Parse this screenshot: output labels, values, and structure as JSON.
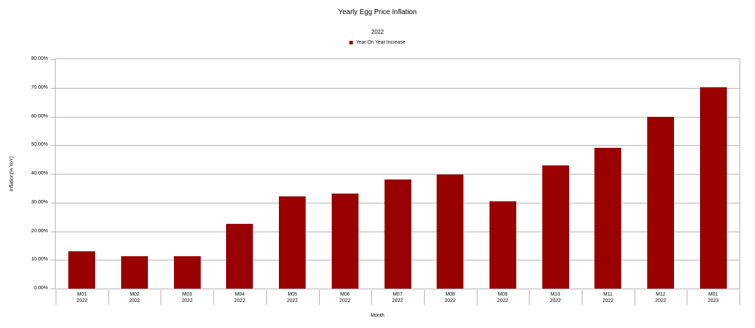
{
  "chart_data": {
    "type": "bar",
    "title": "Yearly Egg Price Inflation",
    "subtitle": "2022",
    "xlabel": "Month",
    "ylabel": "Inflation(% YoY)",
    "ylim": [
      0,
      80
    ],
    "ytick_step": 10,
    "ytick_labels": [
      "0.00%",
      "10.00%",
      "20.00%",
      "30.00%",
      "40.00%",
      "50.00%",
      "60.00%",
      "70.00%",
      "80.00%"
    ],
    "grid": "horizontal gridlines on, no vertical gridlines",
    "legend_position": "top-center",
    "categories": [
      {
        "line1": "M01",
        "line2": "2022"
      },
      {
        "line1": "M02",
        "line2": "2022"
      },
      {
        "line1": "M03",
        "line2": "2022"
      },
      {
        "line1": "M04",
        "line2": "2022"
      },
      {
        "line1": "M05",
        "line2": "2022"
      },
      {
        "line1": "M06",
        "line2": "2022"
      },
      {
        "line1": "M07",
        "line2": "2022"
      },
      {
        "line1": "M08",
        "line2": "2022"
      },
      {
        "line1": "M09",
        "line2": "2022"
      },
      {
        "line1": "M10",
        "line2": "2022"
      },
      {
        "line1": "M11",
        "line2": "2022"
      },
      {
        "line1": "M12",
        "line2": "2022"
      },
      {
        "line1": "M01",
        "line2": "2023"
      }
    ],
    "series": [
      {
        "name": "Year On Year Increase",
        "color": "#990000",
        "values": [
          13.1,
          11.4,
          11.2,
          22.6,
          32.2,
          33.1,
          38.0,
          39.8,
          30.5,
          43.0,
          49.1,
          59.9,
          70.1
        ]
      }
    ]
  },
  "colors": {
    "bar": "#990000",
    "grid": "#b3b3b3",
    "text": "#000000",
    "background": "#ffffff"
  }
}
